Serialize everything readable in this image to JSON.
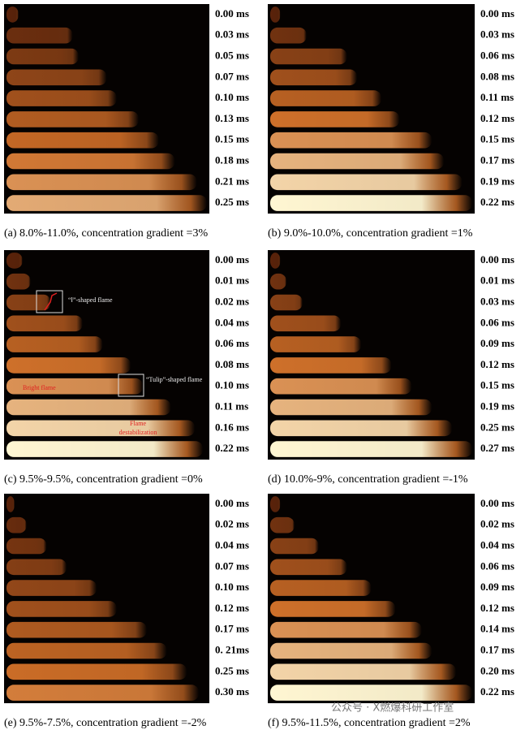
{
  "panels": [
    {
      "caption": "(a) 8.0%-11.0%, concentration gradient =3%",
      "times": [
        "0.00 ms",
        "0.03 ms",
        "0.05 ms",
        "0.07 ms",
        "0.10 ms",
        "0.13 ms",
        "0.15 ms",
        "0.18 ms",
        "0.21 ms",
        "0.25 ms"
      ]
    },
    {
      "caption": "(b) 9.0%-10.0%, concentration gradient =1%",
      "times": [
        "0.00 ms",
        "0.03 ms",
        "0.06 ms",
        "0.08 ms",
        "0.11 ms",
        "0.12 ms",
        "0.15 ms",
        "0.17 ms",
        "0.19 ms",
        "0.22 ms"
      ]
    },
    {
      "caption": "(c) 9.5%-9.5%, concentration gradient =0%",
      "times": [
        "0.00 ms",
        "0.01 ms",
        "0.02 ms",
        "0.04 ms",
        "0.06 ms",
        "0.08 ms",
        "0.10 ms",
        "0.11 ms",
        "0.16 ms",
        "0.22 ms"
      ],
      "annotations": {
        "i_shaped": "“Ⅰ”-shaped flame",
        "tulip_shaped": "“Tulip”-shaped flame",
        "bright": "Bright flame",
        "destabilization": [
          "Flame",
          "destabilization"
        ]
      }
    },
    {
      "caption": "(d) 10.0%-9%, concentration gradient =-1%",
      "times": [
        "0.00 ms",
        "0.01 ms",
        "0.03 ms",
        "0.06 ms",
        "0.09 ms",
        "0.12 ms",
        "0.15 ms",
        "0.19 ms",
        "0.25 ms",
        "0.27 ms"
      ]
    },
    {
      "caption": "(e) 9.5%-7.5%, concentration gradient =-2%",
      "times": [
        "0.00 ms",
        "0.02 ms",
        "0.04 ms",
        "0.07 ms",
        "0.10 ms",
        "0.12 ms",
        "0.17 ms",
        "0. 21ms",
        "0.25 ms",
        "0.30 ms"
      ]
    },
    {
      "caption": "(f) 9.5%-11.5%, concentration gradient =2%",
      "times": [
        "0.00 ms",
        "0.02 ms",
        "0.04 ms",
        "0.06 ms",
        "0.09 ms",
        "0.12 ms",
        "0.14 ms",
        "0.17 ms",
        "0.20 ms",
        "0.22 ms"
      ]
    }
  ],
  "watermark": "公众号 · X燃爆科研工作室"
}
